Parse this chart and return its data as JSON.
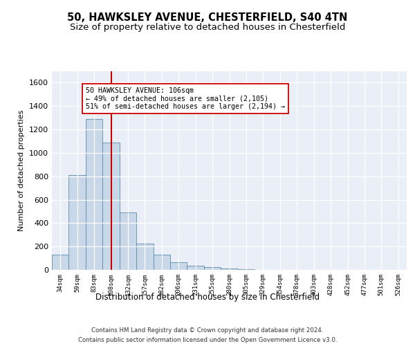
{
  "title1": "50, HAWKSLEY AVENUE, CHESTERFIELD, S40 4TN",
  "title2": "Size of property relative to detached houses in Chesterfield",
  "xlabel": "Distribution of detached houses by size in Chesterfield",
  "ylabel": "Number of detached properties",
  "categories": [
    "34sqm",
    "59sqm",
    "83sqm",
    "108sqm",
    "132sqm",
    "157sqm",
    "182sqm",
    "206sqm",
    "231sqm",
    "255sqm",
    "280sqm",
    "305sqm",
    "329sqm",
    "354sqm",
    "378sqm",
    "403sqm",
    "428sqm",
    "452sqm",
    "477sqm",
    "501sqm",
    "526sqm"
  ],
  "values": [
    130,
    810,
    1290,
    1090,
    490,
    225,
    130,
    65,
    35,
    22,
    14,
    5,
    2,
    1,
    1,
    1,
    1,
    0,
    0,
    0,
    0
  ],
  "bar_color": "#c8d8e8",
  "bar_edge_color": "#5a8aaa",
  "vline_x": 3,
  "vline_color": "#cc0000",
  "annotation_text": "50 HAWKSLEY AVENUE: 106sqm\n← 49% of detached houses are smaller (2,105)\n51% of semi-detached houses are larger (2,194) →",
  "annotation_box_color": "#ffffff",
  "annotation_box_edge": "#cc0000",
  "ylim": [
    0,
    1700
  ],
  "yticks": [
    0,
    200,
    400,
    600,
    800,
    1000,
    1200,
    1400,
    1600
  ],
  "footer1": "Contains HM Land Registry data © Crown copyright and database right 2024.",
  "footer2": "Contains public sector information licensed under the Open Government Licence v3.0.",
  "bg_color": "#ffffff",
  "plot_bg_color": "#eaeff7",
  "grid_color": "#ffffff",
  "title1_fontsize": 10.5,
  "title2_fontsize": 9.5
}
